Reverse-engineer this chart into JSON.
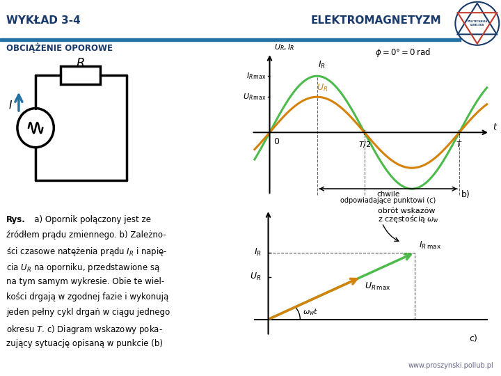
{
  "header_left": "WYKŁAD 3-4",
  "header_right": "ELEKTROMAGNETYZM",
  "subtitle": "OBCIĄŻENIE OPOROWE",
  "footer": "www.proszynski.pollub.pl",
  "header_color": "#1a3a6b",
  "header_line_color": "#2471a3",
  "subtitle_color": "#1a3a6b",
  "bg_color": "#ffffff",
  "text_color": "#000000",
  "blue_arrow_color": "#2471a3",
  "graph_green_color": "#4cbb4c",
  "graph_orange_color": "#d4820a",
  "graph_axis_color": "#000000"
}
